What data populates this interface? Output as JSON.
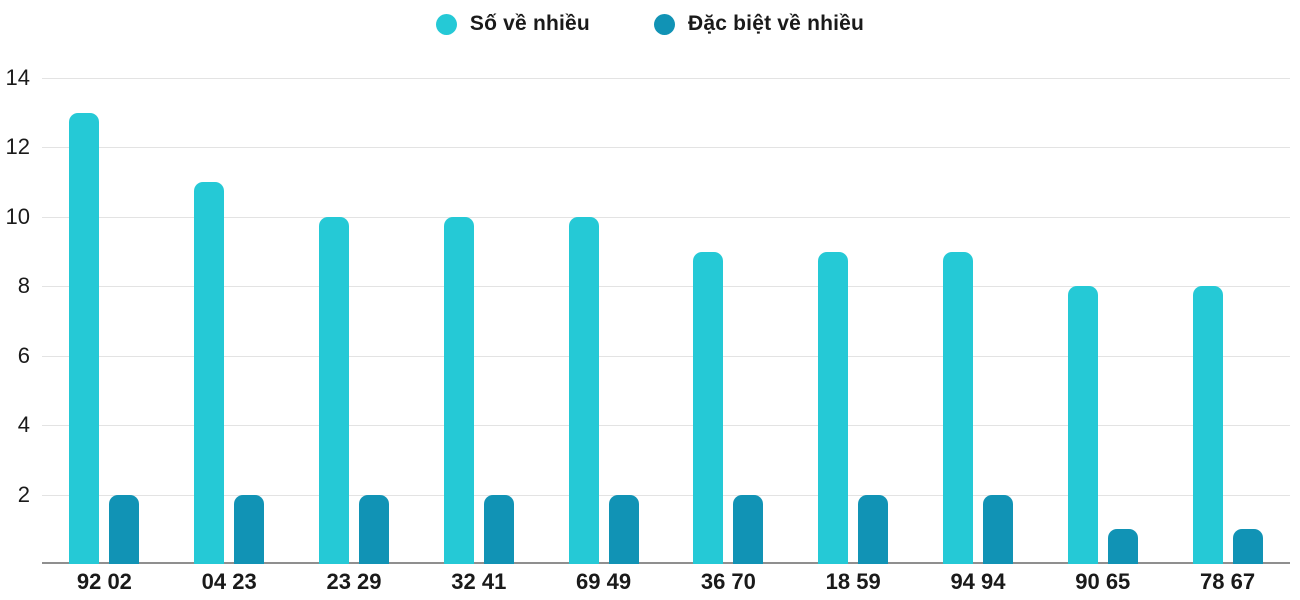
{
  "chart_data": {
    "type": "bar",
    "categories": [
      "92 02",
      "04 23",
      "23 29",
      "32 41",
      "69 49",
      "36 70",
      "18 59",
      "94 94",
      "90 65",
      "78 67"
    ],
    "series": [
      {
        "name": "Số về nhiều",
        "color": "#25c9d6",
        "values": [
          13,
          11,
          10,
          10,
          10,
          9,
          9,
          9,
          8,
          8
        ]
      },
      {
        "name": "Đặc biệt về nhiều",
        "color": "#1193b5",
        "values": [
          2,
          2,
          2,
          2,
          2,
          2,
          2,
          2,
          1,
          1
        ]
      }
    ],
    "title": "",
    "xlabel": "",
    "ylabel": "",
    "ylim": [
      0,
      14
    ],
    "yticks": [
      2,
      4,
      6,
      8,
      10,
      12,
      14
    ],
    "grid": true,
    "legend_position": "top"
  },
  "style": {
    "gridline_color": "#e3e3e3",
    "axis_line_color": "#8f8f8f",
    "text_color": "#1a1a1a"
  }
}
